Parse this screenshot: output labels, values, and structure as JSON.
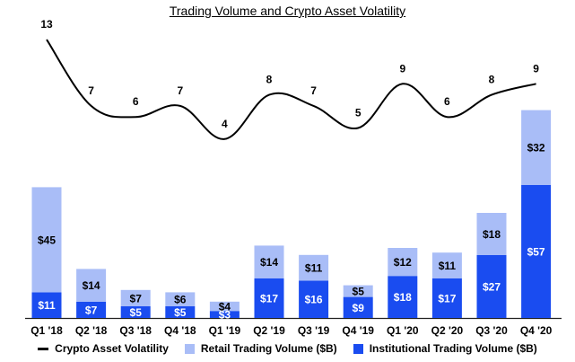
{
  "chart_data": {
    "type": "bar",
    "title": "Trading Volume and Crypto Asset Volatility",
    "categories": [
      "Q1 '18",
      "Q2 '18",
      "Q3 '18",
      "Q4 '18",
      "Q1 '19",
      "Q2 '19",
      "Q3 '19",
      "Q4 '19",
      "Q1 '20",
      "Q2 '20",
      "Q3 '20",
      "Q4 '20"
    ],
    "stacked": true,
    "series": [
      {
        "name": "Institutional Trading Volume ($B)",
        "values": [
          11,
          7,
          5,
          5,
          3,
          17,
          16,
          9,
          18,
          17,
          27,
          57
        ],
        "value_labels": [
          "$11",
          "$7",
          "$5",
          "$5",
          "$3",
          "$17",
          "$16",
          "$9",
          "$18",
          "$17",
          "$27",
          "$57"
        ],
        "color": "#1a4cf0"
      },
      {
        "name": "Retail Trading Volume ($B)",
        "values": [
          45,
          14,
          7,
          6,
          4,
          14,
          11,
          5,
          12,
          11,
          18,
          32
        ],
        "value_labels": [
          "$45",
          "$14",
          "$7",
          "$6",
          "$4",
          "$14",
          "$11",
          "$5",
          "$12",
          "$11",
          "$18",
          "$32"
        ],
        "color": "#a9bdf7"
      }
    ],
    "line_series": {
      "name": "Crypto Asset Volatility",
      "values": [
        13,
        7,
        6,
        7,
        4,
        8,
        7,
        5,
        9,
        6,
        8,
        9
      ],
      "value_labels": [
        "13",
        "7",
        "6",
        "7",
        "4",
        "8",
        "7",
        "5",
        "9",
        "6",
        "8",
        "9"
      ],
      "color": "#000000"
    }
  },
  "legend": {
    "line_label": "Crypto Asset Volatility",
    "retail_label": "Retail Trading Volume ($B)",
    "institutional_label": "Institutional Trading Volume ($B)"
  }
}
